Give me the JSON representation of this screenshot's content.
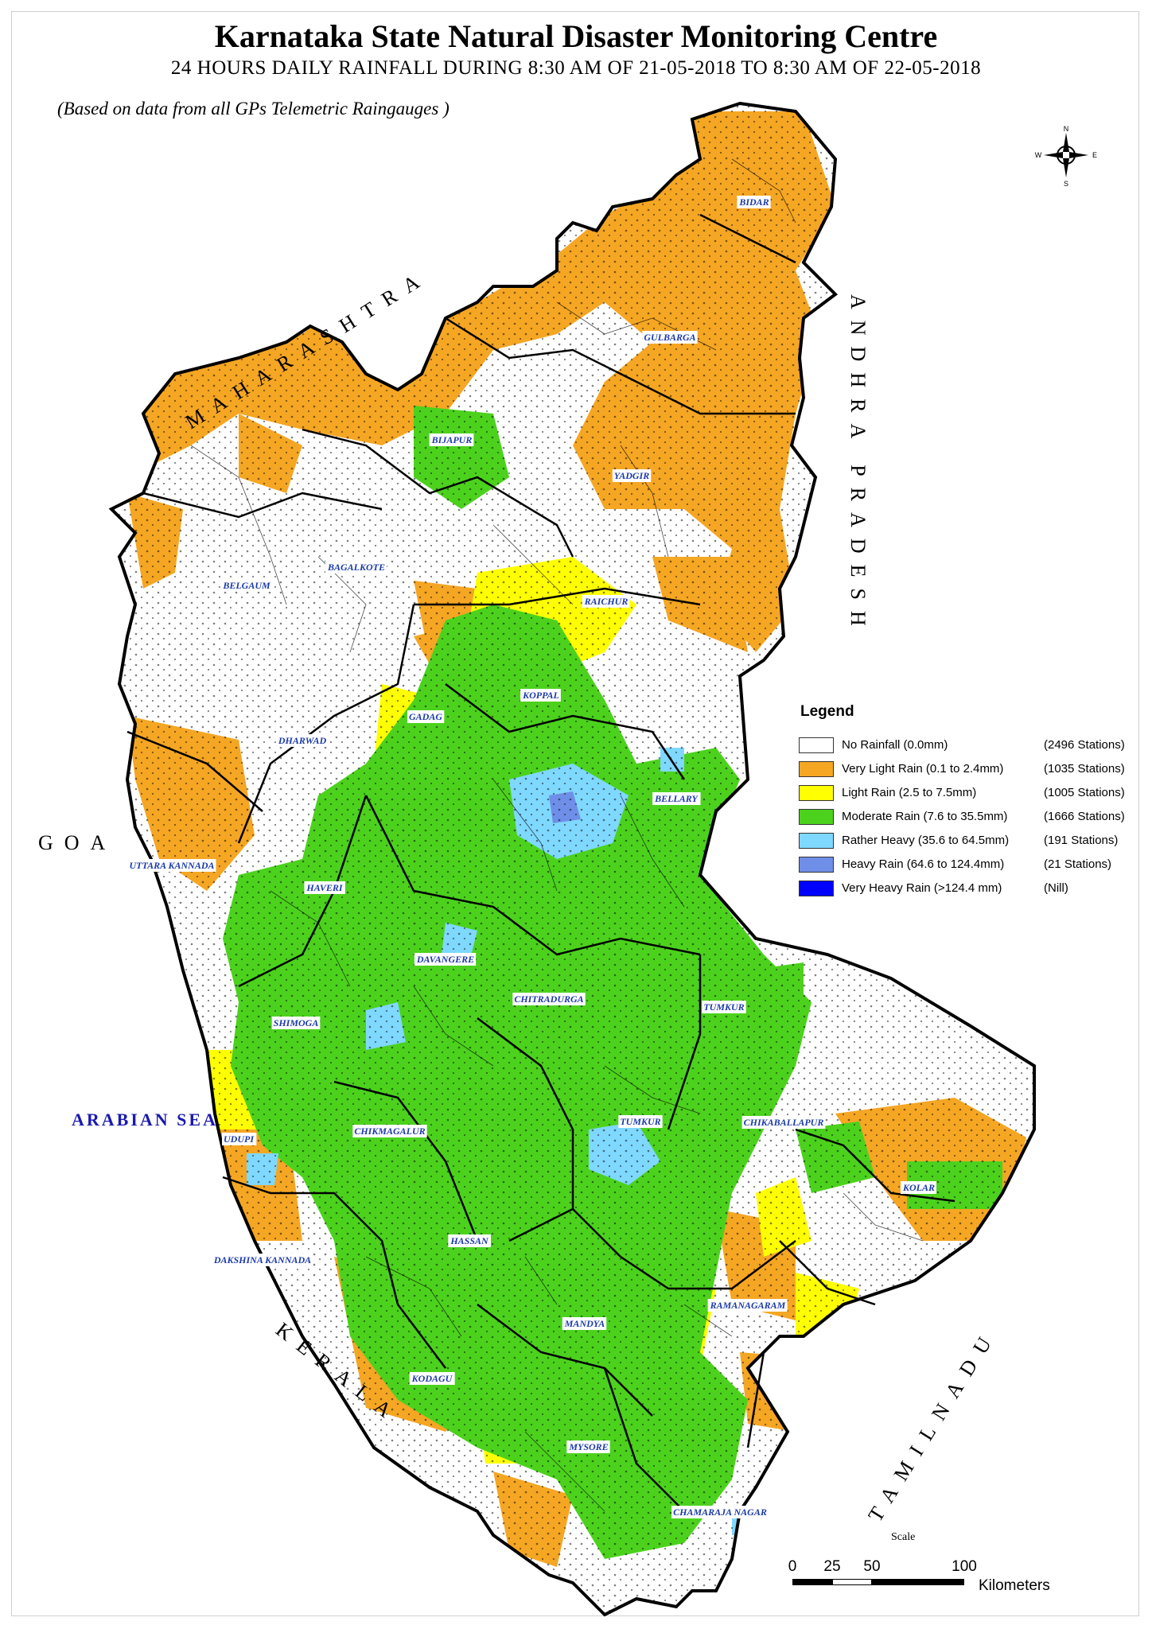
{
  "header": {
    "title": "Karnataka State Natural Disaster Monitoring Centre",
    "subtitle": "24 HOURS DAILY RAINFALL DURING 8:30 AM OF  21-05-2018 TO 8:30 AM OF 22-05-2018",
    "note": "(Based on data from all GPs Telemetric Raingauges )"
  },
  "compass": {
    "n": "N",
    "s": "S",
    "e": "E",
    "w": "W"
  },
  "neighbours": [
    {
      "text": "MAHARASHTRA",
      "id": "maharashtra"
    },
    {
      "text": "ANDHRA PRADESH",
      "id": "andhra"
    },
    {
      "text": "GOA",
      "id": "goa"
    },
    {
      "text": "ARABIAN SEA",
      "id": "sea"
    },
    {
      "text": "KERALA",
      "id": "kerala"
    },
    {
      "text": "TAMILNADU",
      "id": "tamilnadu"
    }
  ],
  "districts": [
    "BIDAR",
    "GULBARGA",
    "BIJAPUR",
    "YADGIR",
    "BAGALKOTE",
    "BELGAUM",
    "RAICHUR",
    "KOPPAL",
    "GADAG",
    "DHARWAD",
    "BELLARY",
    "UTTARA KANNADA",
    "HAVERI",
    "DAVANGERE",
    "CHITRADURGA",
    "TUMKUR",
    "SHIMOGA",
    "UDUPI",
    "CHIKMAGALUR",
    "CHIKABALLAPUR",
    "KOLAR",
    "HASSAN",
    "DAKSHINA KANNADA",
    "MANDYA",
    "RAMANAGARAM",
    "KODAGU",
    "MYSORE",
    "CHAMARAJA NAGAR",
    "TUMKUR"
  ],
  "legend": {
    "title": "Legend",
    "items": [
      {
        "label": "No Rainfall (0.0mm)",
        "count": "(2496 Stations)",
        "color": "#ffffff"
      },
      {
        "label": "Very Light Rain (0.1 to 2.4mm)",
        "count": "(1035 Stations)",
        "color": "#f5a623"
      },
      {
        "label": " Light Rain (2.5 to 7.5mm)",
        "count": "(1005 Stations)",
        "color": "#ffff00"
      },
      {
        "label": "Moderate Rain (7.6 to 35.5mm)",
        "count": "(1666 Stations)",
        "color": "#4cd21d"
      },
      {
        "label": "Rather Heavy (35.6 to 64.5mm)",
        "count": "(191 Stations)",
        "color": "#7fd8ff"
      },
      {
        "label": "Heavy Rain  (64.6 to 124.4mm)",
        "count": "(21 Stations)",
        "color": "#6f8ee8"
      },
      {
        "label": "Very Heavy Rain  (>124.4 mm)",
        "count": "(Nill)",
        "color": "#0000ff"
      }
    ]
  },
  "scale": {
    "title": "Scale",
    "ticks": [
      "0",
      "25",
      "50",
      "100"
    ],
    "unit": "Kilometers"
  }
}
